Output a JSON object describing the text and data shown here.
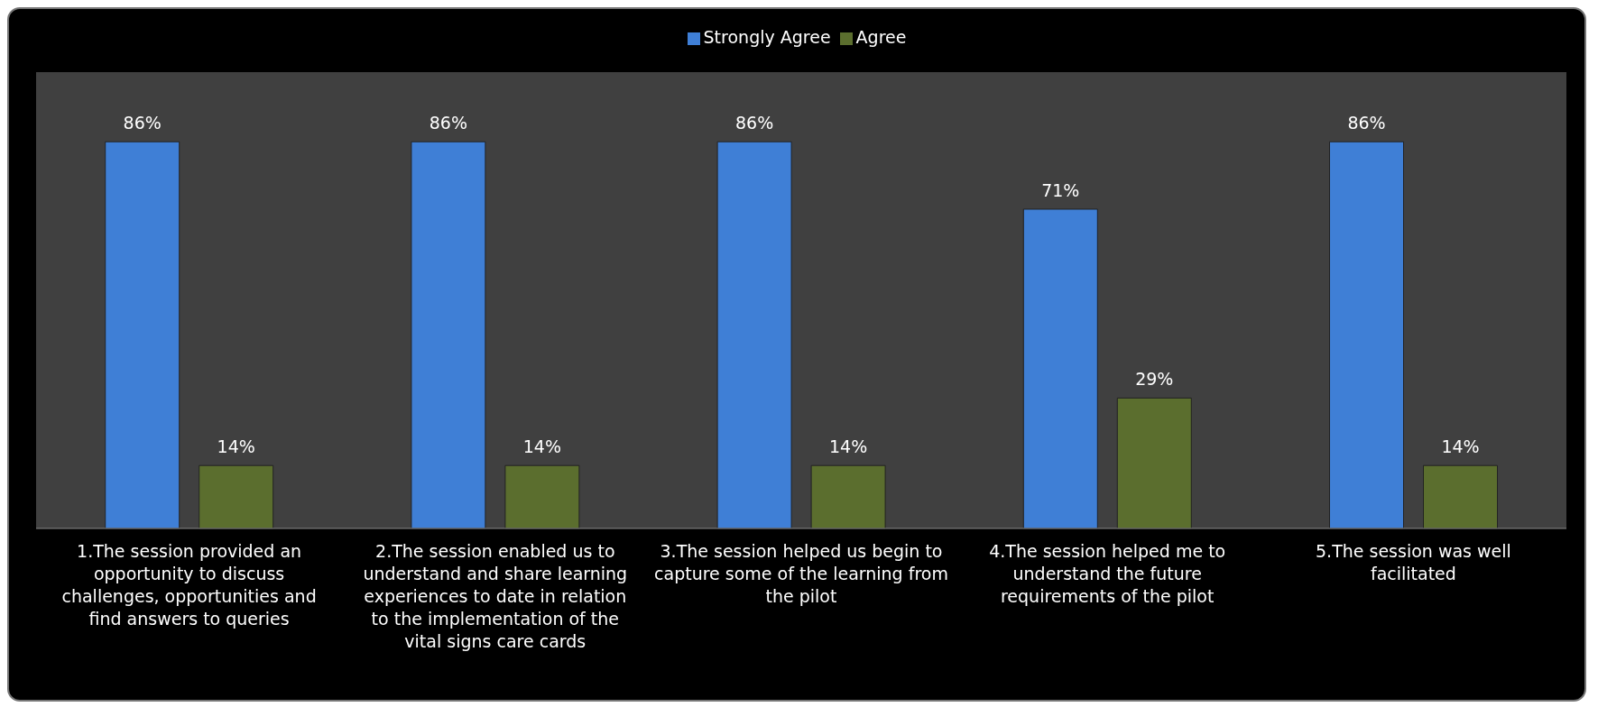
{
  "chart_data": {
    "type": "bar",
    "categories": [
      "1.The session provided an opportunity to discuss challenges, opportunities and find answers to queries",
      "2.The session enabled us to understand and share learning experiences to date in relation to the implementation of the vital signs care cards",
      "3.The session helped us begin to capture some of the learning from the pilot",
      "4.The session helped me to understand the future requirements of the pilot",
      "5.The session was well facilitated"
    ],
    "series": [
      {
        "name": "Strongly Agree",
        "color": "#3f7fd6",
        "values": [
          86,
          86,
          86,
          71,
          86
        ],
        "value_labels": [
          "86%",
          "86%",
          "86%",
          "71%",
          "86%"
        ]
      },
      {
        "name": "Agree",
        "color": "#5b6e2e",
        "values": [
          14,
          14,
          14,
          29,
          14
        ],
        "value_labels": [
          "14%",
          "14%",
          "14%",
          "29%",
          "14%"
        ]
      }
    ],
    "legend": "top"
  }
}
